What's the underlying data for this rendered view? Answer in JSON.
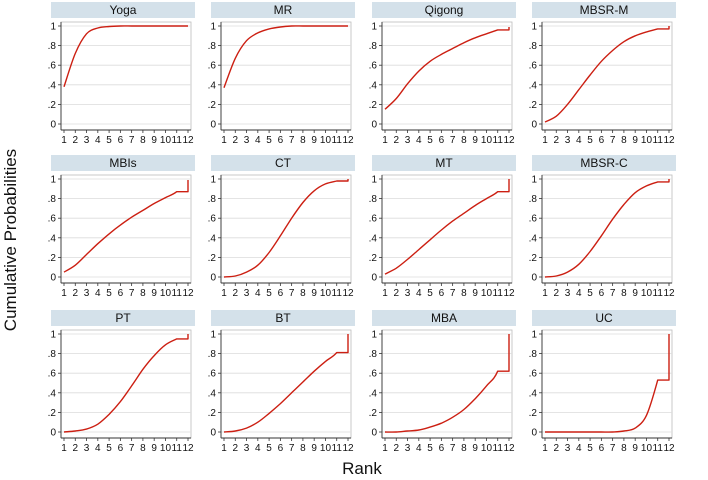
{
  "figure": {
    "ylabel": "Cumulative Probabilities",
    "xlabel": "Rank",
    "colors": {
      "line": "#cc1f12",
      "title_bg": "#d4e1ea",
      "grid": "#dcdcdc",
      "axis": "#333333"
    }
  },
  "chart_data": [
    {
      "type": "line",
      "title": "Yoga",
      "x": [
        1,
        2,
        3,
        4,
        5,
        6,
        7,
        8,
        9,
        10,
        11,
        12
      ],
      "y": [
        0.38,
        0.72,
        0.92,
        0.98,
        0.995,
        1,
        1,
        1,
        1,
        1,
        1,
        1
      ],
      "xticks": [
        "1",
        "2",
        "3",
        "4",
        "5",
        "6",
        "7",
        "8",
        "9",
        "10",
        "11",
        "12"
      ],
      "yticks": [
        "0",
        ".2",
        ".4",
        ".6",
        ".8",
        "1"
      ],
      "ylim": [
        0,
        1
      ]
    },
    {
      "type": "line",
      "title": "MR",
      "x": [
        1,
        2,
        3,
        4,
        5,
        6,
        7,
        8,
        9,
        10,
        11,
        12
      ],
      "y": [
        0.37,
        0.67,
        0.85,
        0.93,
        0.97,
        0.99,
        1,
        1,
        1,
        1,
        1,
        1
      ],
      "xticks": [
        "1",
        "2",
        "3",
        "4",
        "5",
        "6",
        "7",
        "8",
        "9",
        "10",
        "11",
        "12"
      ],
      "yticks": [
        "0",
        ".2",
        ".4",
        ".6",
        ".8",
        "1"
      ],
      "ylim": [
        0,
        1
      ]
    },
    {
      "type": "line",
      "title": "Qigong",
      "x": [
        1,
        2,
        3,
        4,
        5,
        6,
        7,
        8,
        9,
        10,
        11,
        12
      ],
      "y": [
        0.15,
        0.26,
        0.41,
        0.54,
        0.64,
        0.71,
        0.77,
        0.83,
        0.88,
        0.92,
        0.96,
        0.99
      ],
      "xticks": [
        "1",
        "2",
        "3",
        "4",
        "5",
        "6",
        "7",
        "8",
        "9",
        "10",
        "11",
        "12"
      ],
      "yticks": [
        "0",
        ".2",
        ".4",
        ".6",
        ".8",
        "1"
      ],
      "ylim": [
        0,
        1
      ]
    },
    {
      "type": "line",
      "title": "MBSR-M",
      "x": [
        1,
        2,
        3,
        4,
        5,
        6,
        7,
        8,
        9,
        10,
        11,
        12
      ],
      "y": [
        0.02,
        0.08,
        0.2,
        0.35,
        0.5,
        0.64,
        0.75,
        0.84,
        0.9,
        0.94,
        0.97,
        1
      ],
      "xticks": [
        "1",
        "2",
        "3",
        "4",
        "5",
        "6",
        "7",
        "8",
        "9",
        "10",
        "11",
        "12"
      ],
      "yticks": [
        "0",
        ".2",
        ".4",
        ".6",
        ".8",
        "1"
      ],
      "ylim": [
        0,
        1
      ]
    },
    {
      "type": "line",
      "title": "MBIs",
      "x": [
        1,
        2,
        3,
        4,
        5,
        6,
        7,
        8,
        9,
        10,
        11,
        12
      ],
      "y": [
        0.05,
        0.12,
        0.23,
        0.34,
        0.44,
        0.53,
        0.61,
        0.68,
        0.75,
        0.81,
        0.87,
        0.99
      ],
      "xticks": [
        "1",
        "2",
        "3",
        "4",
        "5",
        "6",
        "7",
        "8",
        "9",
        "10",
        "11",
        "12"
      ],
      "yticks": [
        "0",
        ".2",
        ".4",
        ".6",
        ".8",
        "1"
      ],
      "ylim": [
        0,
        1
      ]
    },
    {
      "type": "line",
      "title": "CT",
      "x": [
        1,
        2,
        3,
        4,
        5,
        6,
        7,
        8,
        9,
        10,
        11,
        12
      ],
      "y": [
        0,
        0.01,
        0.05,
        0.12,
        0.25,
        0.42,
        0.6,
        0.76,
        0.88,
        0.95,
        0.98,
        1
      ],
      "xticks": [
        "1",
        "2",
        "3",
        "4",
        "5",
        "6",
        "7",
        "8",
        "9",
        "10",
        "11",
        "12"
      ],
      "yticks": [
        "0",
        ".2",
        ".4",
        ".6",
        ".8",
        "1"
      ],
      "ylim": [
        0,
        1
      ]
    },
    {
      "type": "line",
      "title": "MT",
      "x": [
        1,
        2,
        3,
        4,
        5,
        6,
        7,
        8,
        9,
        10,
        11,
        12
      ],
      "y": [
        0.03,
        0.09,
        0.18,
        0.28,
        0.38,
        0.48,
        0.57,
        0.65,
        0.73,
        0.8,
        0.87,
        1
      ],
      "xticks": [
        "1",
        "2",
        "3",
        "4",
        "5",
        "6",
        "7",
        "8",
        "9",
        "10",
        "11",
        "12"
      ],
      "yticks": [
        "0",
        ".2",
        ".4",
        ".6",
        ".8",
        "1"
      ],
      "ylim": [
        0,
        1
      ]
    },
    {
      "type": "line",
      "title": "MBSR-C",
      "x": [
        1,
        2,
        3,
        4,
        5,
        6,
        7,
        8,
        9,
        10,
        11,
        12
      ],
      "y": [
        0,
        0.01,
        0.05,
        0.13,
        0.26,
        0.42,
        0.59,
        0.74,
        0.86,
        0.93,
        0.97,
        1
      ],
      "xticks": [
        "1",
        "2",
        "3",
        "4",
        "5",
        "6",
        "7",
        "8",
        "9",
        "10",
        "11",
        "12"
      ],
      "yticks": [
        "0",
        ".2",
        ".4",
        ".6",
        ".8",
        "1"
      ],
      "ylim": [
        0,
        1
      ]
    },
    {
      "type": "line",
      "title": "PT",
      "x": [
        1,
        2,
        3,
        4,
        5,
        6,
        7,
        8,
        9,
        10,
        11,
        12
      ],
      "y": [
        0,
        0.01,
        0.03,
        0.08,
        0.18,
        0.31,
        0.47,
        0.64,
        0.78,
        0.89,
        0.95,
        1
      ],
      "xticks": [
        "1",
        "2",
        "3",
        "4",
        "5",
        "6",
        "7",
        "8",
        "9",
        "10",
        "11",
        "12"
      ],
      "yticks": [
        "0",
        ".2",
        ".4",
        ".6",
        ".8",
        "1"
      ],
      "ylim": [
        0,
        1
      ]
    },
    {
      "type": "line",
      "title": "BT",
      "x": [
        1,
        2,
        3,
        4,
        5,
        6,
        7,
        8,
        9,
        10,
        11,
        12
      ],
      "y": [
        0,
        0.01,
        0.04,
        0.1,
        0.19,
        0.29,
        0.4,
        0.51,
        0.62,
        0.72,
        0.81,
        1
      ],
      "xticks": [
        "1",
        "2",
        "3",
        "4",
        "5",
        "6",
        "7",
        "8",
        "9",
        "10",
        "11",
        "12"
      ],
      "yticks": [
        "0",
        ".2",
        ".4",
        ".6",
        ".8",
        "1"
      ],
      "ylim": [
        0,
        1
      ]
    },
    {
      "type": "line",
      "title": "MBA",
      "x": [
        1,
        2,
        3,
        4,
        5,
        6,
        7,
        8,
        9,
        10,
        11,
        12
      ],
      "y": [
        0,
        0,
        0.01,
        0.02,
        0.05,
        0.09,
        0.15,
        0.23,
        0.34,
        0.47,
        0.62,
        1
      ],
      "xticks": [
        "1",
        "2",
        "3",
        "4",
        "5",
        "6",
        "7",
        "8",
        "9",
        "10",
        "11",
        "12"
      ],
      "yticks": [
        "0",
        ".2",
        ".4",
        ".6",
        ".8",
        "1"
      ],
      "ylim": [
        0,
        1
      ]
    },
    {
      "type": "line",
      "title": "UC",
      "x": [
        1,
        2,
        3,
        4,
        5,
        6,
        7,
        8,
        9,
        10,
        11,
        12
      ],
      "y": [
        0,
        0,
        0,
        0,
        0,
        0,
        0,
        0.01,
        0.04,
        0.17,
        0.53,
        1
      ],
      "xticks": [
        "1",
        "2",
        "3",
        "4",
        "5",
        "6",
        "7",
        "8",
        "9",
        "10",
        "11",
        "12"
      ],
      "yticks": [
        "0",
        ".2",
        ".4",
        ".6",
        ".8",
        "1"
      ],
      "ylim": [
        0,
        1
      ]
    }
  ]
}
